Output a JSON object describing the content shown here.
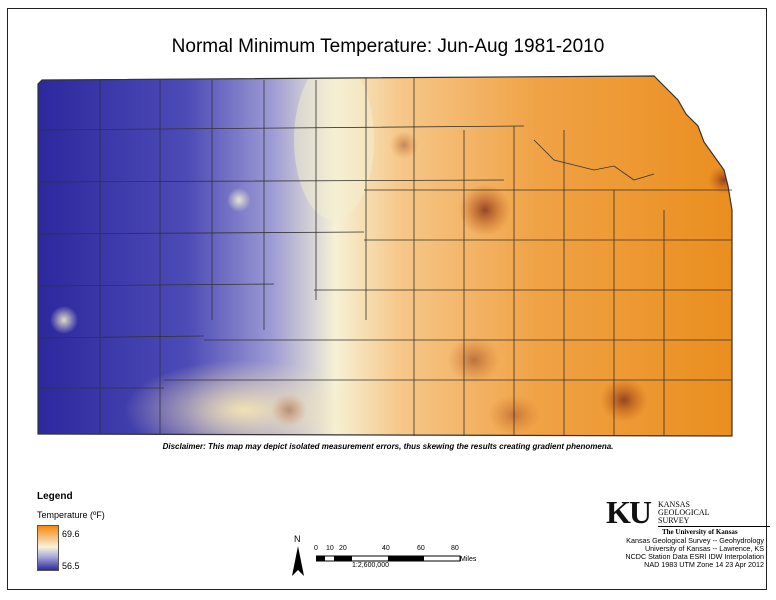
{
  "title": "Normal Minimum Temperature:  Jun-Aug 1981-2010",
  "disclaimer": "Disclaimer: This map may depict isolated measurement errors, thus skewing the results creating gradient phenomena.",
  "legend": {
    "title": "Legend",
    "subtitle": "Temperature (ºF)",
    "high": "69.6",
    "low": "56.5",
    "colors": {
      "high": "#f08a12",
      "mid": "#f8f3dc",
      "low": "#2d2aa0"
    }
  },
  "north_arrow": {
    "label": "N"
  },
  "scale": {
    "ticks": [
      "0",
      "10",
      "20",
      "40",
      "60",
      "80"
    ],
    "unit": "Miles",
    "ratio": "1:2,600,000"
  },
  "branding": {
    "logo": "KU",
    "name_lines": [
      "KANSAS",
      "GEOLOGICAL",
      "SURVEY"
    ],
    "university": "The University of Kansas"
  },
  "credits": [
    "Kansas Geological Survey -- Geohydrology",
    "University of Kansas -- Lawrence, KS",
    "NCDC Station Data  ESRI IDW Interpolation",
    "NAD 1983 UTM Zone 14  23 Apr 2012"
  ]
}
